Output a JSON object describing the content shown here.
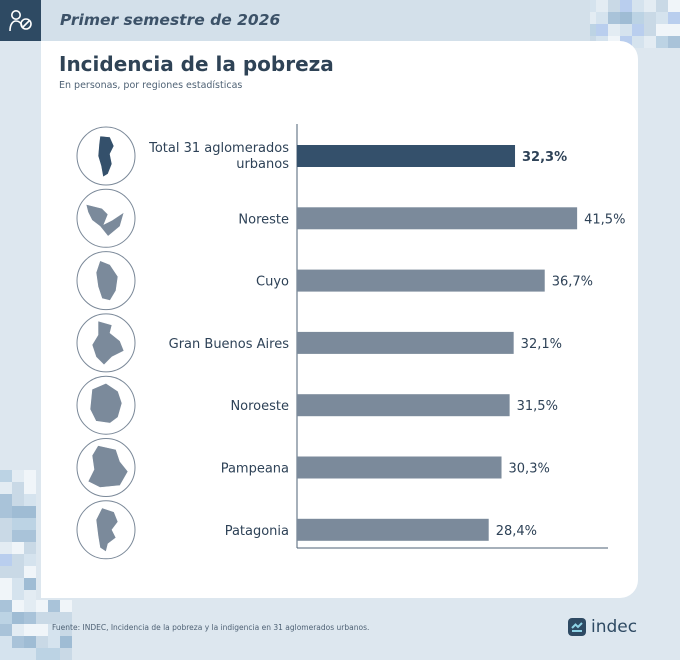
{
  "header": {
    "period": "Primer semestre de 2026"
  },
  "chart_data": {
    "type": "bar",
    "orientation": "horizontal",
    "title": "Incidencia de la pobreza",
    "subtitle": "En personas, por regiones estadísticas",
    "categories": [
      "Total 31 aglomerados urbanos",
      "Noreste",
      "Cuyo",
      "Gran Buenos Aires",
      "Noroeste",
      "Pampeana",
      "Patagonia"
    ],
    "values": [
      32.3,
      41.5,
      36.7,
      32.1,
      31.5,
      30.3,
      28.4
    ],
    "value_labels": [
      "32,3%",
      "41,5%",
      "36,7%",
      "32,1%",
      "31,5%",
      "30,3%",
      "28,4%"
    ],
    "highlight_index": 0,
    "colors": {
      "highlight": "#34506b",
      "default": "#7b8a9b"
    },
    "xlim": [
      0,
      45
    ],
    "grid": false,
    "legend": "none"
  },
  "footer": {
    "source": "Fuente: INDEC, Incidencia de la pobreza y la indigencia en 31 aglomerados urbanos.",
    "brand": "indec"
  }
}
